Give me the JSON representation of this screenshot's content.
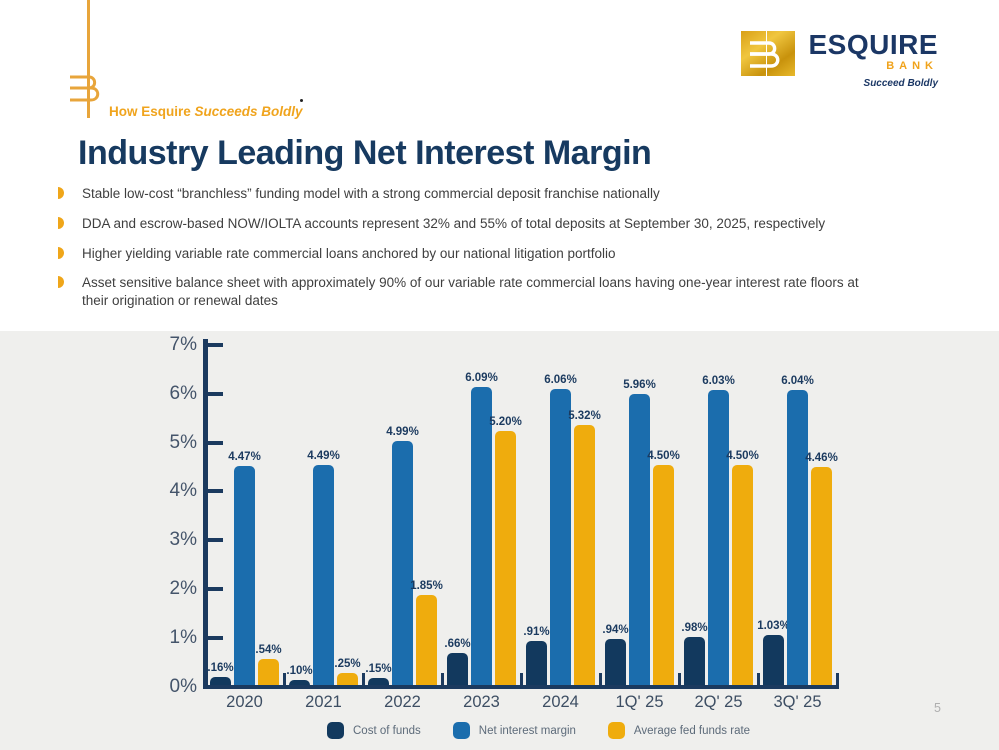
{
  "brand": {
    "accent_gold": "#F0A61E",
    "navy": "#173A60",
    "tagline_prefix": "How Esquire ",
    "tagline_emphasis": "Succeeds Boldly",
    "logo_name": "ESQUIRE",
    "logo_sub": "BANK",
    "logo_tagline": "Succeed Boldly",
    "monogram": "EB"
  },
  "page": {
    "title": "Industry Leading Net Interest Margin",
    "page_number": "5"
  },
  "bullets": [
    "Stable low-cost “branchless” funding model with a strong commercial deposit franchise nationally",
    "DDA and escrow-based NOW/IOLTA accounts represent 32% and 55% of total deposits at September 30, 2025, respectively",
    "Higher yielding variable rate commercial loans anchored by our national litigation portfolio",
    "Asset sensitive balance sheet with approximately 90% of our variable rate commercial loans having one-year interest rate floors at their origination or renewal dates"
  ],
  "chart_data": {
    "type": "bar",
    "categories": [
      "2020",
      "2021",
      "2022",
      "2023",
      "2024",
      "1Q' 25",
      "2Q' 25",
      "3Q' 25"
    ],
    "series": [
      {
        "name": "Cost of funds",
        "color": "#12395E",
        "values": [
          0.16,
          0.1,
          0.15,
          0.66,
          0.91,
          0.94,
          0.98,
          1.03
        ],
        "labels": [
          ".16%",
          ".10%",
          ".15%",
          ".66%",
          ".91%",
          ".94%",
          ".98%",
          "1.03%"
        ]
      },
      {
        "name": "Net interest margin",
        "color": "#1B6DAD",
        "values": [
          4.47,
          4.49,
          4.99,
          6.09,
          6.06,
          5.96,
          6.03,
          6.04
        ],
        "labels": [
          "4.47%",
          "4.49%",
          "4.99%",
          "6.09%",
          "6.06%",
          "5.96%",
          "6.03%",
          "6.04%"
        ]
      },
      {
        "name": "Average fed funds rate",
        "color": "#EFAC0D",
        "values": [
          0.54,
          0.25,
          1.85,
          5.2,
          5.32,
          4.5,
          4.5,
          4.46
        ],
        "labels": [
          ".54%",
          ".25%",
          "1.85%",
          "5.20%",
          "5.32%",
          "4.50%",
          "4.50%",
          "4.46%"
        ]
      }
    ],
    "title": "",
    "xlabel": "",
    "ylabel": "",
    "ylim": [
      0,
      7
    ],
    "y_tick_labels": [
      "0%",
      "1%",
      "2%",
      "3%",
      "4%",
      "5%",
      "6%",
      "7%"
    ],
    "grid": false,
    "legend_position": "bottom"
  }
}
